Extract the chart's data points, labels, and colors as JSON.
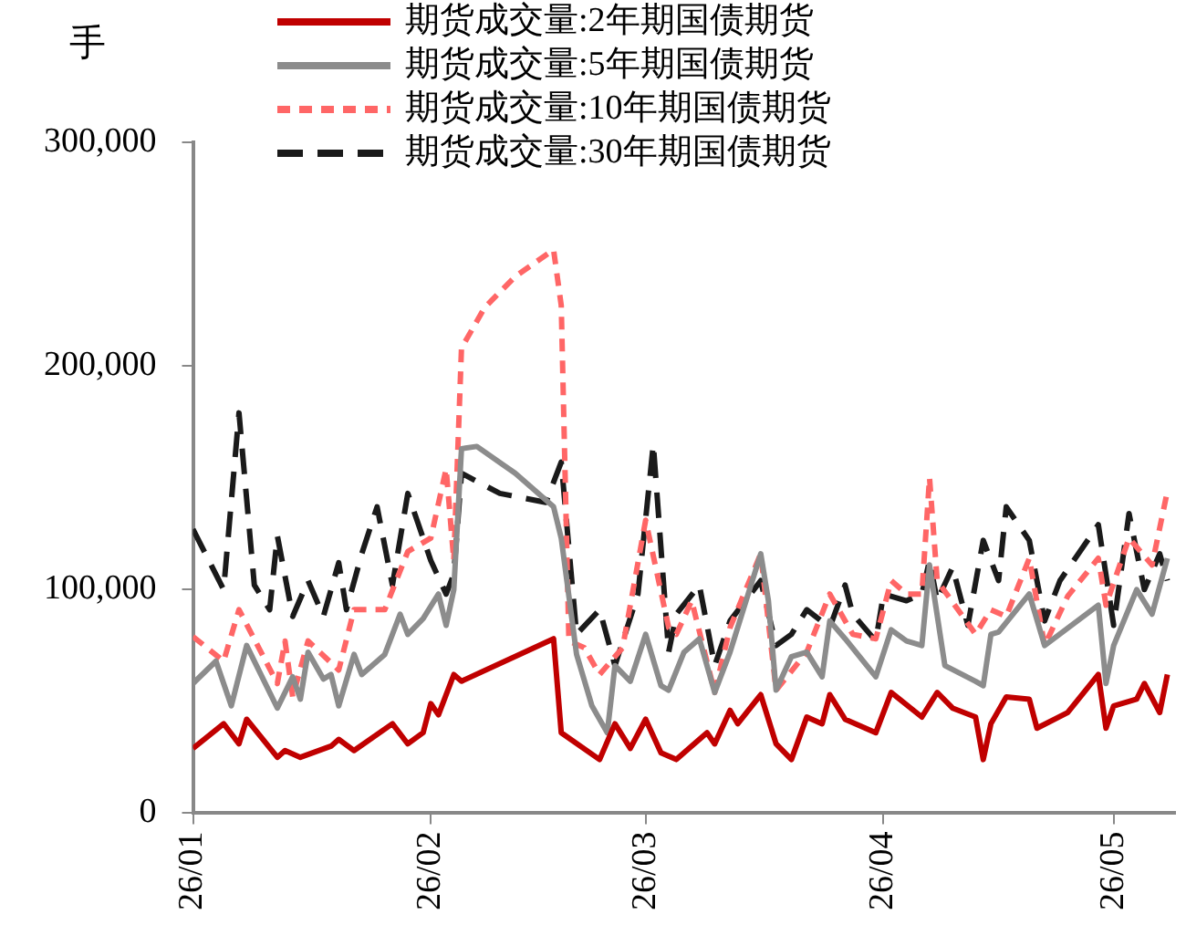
{
  "chart_data": {
    "type": "line",
    "ylabel": "手",
    "legend": "top",
    "grid": false,
    "marker": "none",
    "xlim": [
      "--01-01",
      "--05-09"
    ],
    "xticks": [
      {
        "value": "--01-01",
        "label": "26/01"
      },
      {
        "value": "--02-01",
        "label": "26/02"
      },
      {
        "value": "--03-01",
        "label": "26/03"
      },
      {
        "value": "--04-01",
        "label": "26/04"
      },
      {
        "value": "--05-01",
        "label": "26/05"
      }
    ],
    "ylim": [
      0,
      300000
    ],
    "yticks": [
      0,
      {
        "value": 100000,
        "label": "100,000"
      },
      {
        "value": 200000,
        "label": "200,000"
      },
      {
        "value": 300000,
        "label": "300,000"
      }
    ],
    "series": [
      {
        "name": "期货成交量:2年期国债期货",
        "color": "#c00000",
        "line_style": "solid",
        "x": [
          "--01-01",
          "--01-05",
          "--01-07",
          "--01-08",
          "--01-12",
          "--01-13",
          "--01-15",
          "--01-19",
          "--01-20",
          "--01-22",
          "--01-27",
          "--01-29",
          "--01-31",
          "--02-01",
          "--02-02",
          "--02-04",
          "--02-05",
          "--02-17",
          "--02-18",
          "--02-23",
          "--02-25",
          "--02-27",
          "--03-01",
          "--03-03",
          "--03-05",
          "--03-09",
          "--03-10",
          "--03-12",
          "--03-13",
          "--03-16",
          "--03-18",
          "--03-20",
          "--03-22",
          "--03-24",
          "--03-25",
          "--03-27",
          "--03-31",
          "--04-02",
          "--04-06",
          "--04-08",
          "--04-10",
          "--04-13",
          "--04-14",
          "--04-15",
          "--04-17",
          "--04-20",
          "--04-21",
          "--04-25",
          "--04-29",
          "--04-30",
          "--05-01",
          "--05-04",
          "--05-05",
          "--05-07",
          "--05-08"
        ],
        "values": [
          29000,
          40000,
          31000,
          42000,
          25000,
          28000,
          25000,
          30000,
          33000,
          28000,
          40000,
          31000,
          36000,
          49000,
          44000,
          62000,
          59000,
          78000,
          36000,
          24000,
          40000,
          29000,
          42000,
          27000,
          24000,
          36000,
          31000,
          46000,
          40000,
          53000,
          31000,
          24000,
          43000,
          40000,
          53000,
          42000,
          36000,
          54000,
          43000,
          54000,
          47000,
          43000,
          24000,
          40000,
          52000,
          51000,
          38000,
          45000,
          62000,
          38000,
          48000,
          51000,
          58000,
          45000,
          62000
        ]
      },
      {
        "name": "期货成交量:5年期国债期货",
        "color": "#8c8c8c",
        "line_style": "solid",
        "x": [
          "--01-01",
          "--01-04",
          "--01-06",
          "--01-08",
          "--01-12",
          "--01-14",
          "--01-15",
          "--01-16",
          "--01-18",
          "--01-19",
          "--01-20",
          "--01-22",
          "--01-23",
          "--01-26",
          "--01-28",
          "--01-29",
          "--01-31",
          "--02-02",
          "--02-03",
          "--02-04",
          "--02-05",
          "--02-07",
          "--02-12",
          "--02-17",
          "--02-18",
          "--02-20",
          "--02-22",
          "--02-24",
          "--02-25",
          "--02-27",
          "--03-01",
          "--03-03",
          "--03-04",
          "--03-06",
          "--03-08",
          "--03-10",
          "--03-12",
          "--03-16",
          "--03-17",
          "--03-18",
          "--03-20",
          "--03-22",
          "--03-24",
          "--03-25",
          "--03-27",
          "--03-31",
          "--04-02",
          "--04-04",
          "--04-06",
          "--04-07",
          "--04-09",
          "--04-13",
          "--04-14",
          "--04-15",
          "--04-16",
          "--04-20",
          "--04-22",
          "--04-29",
          "--04-30",
          "--05-01",
          "--05-04",
          "--05-06",
          "--05-08"
        ],
        "values": [
          58000,
          68000,
          48000,
          75000,
          47000,
          61000,
          51000,
          72000,
          60000,
          62000,
          48000,
          71000,
          62000,
          71000,
          89000,
          80000,
          87000,
          98000,
          84000,
          100000,
          163000,
          164000,
          152000,
          137000,
          123000,
          71000,
          48000,
          36000,
          66000,
          59000,
          80000,
          57000,
          55000,
          72000,
          78000,
          54000,
          72000,
          116000,
          95000,
          55000,
          70000,
          72000,
          61000,
          86000,
          78000,
          61000,
          82000,
          77000,
          75000,
          111000,
          66000,
          59000,
          57000,
          80000,
          81000,
          98000,
          75000,
          93000,
          58000,
          75000,
          100000,
          89000,
          114000
        ]
      },
      {
        "name": "期货成交量:10年期国债期货",
        "color": "#ff6666",
        "line_style": "dotted",
        "x": [
          "--01-01",
          "--01-05",
          "--01-07",
          "--01-12",
          "--01-13",
          "--01-14",
          "--01-16",
          "--01-20",
          "--01-22",
          "--01-26",
          "--01-29",
          "--02-01",
          "--02-03",
          "--02-04",
          "--02-05",
          "--02-08",
          "--02-12",
          "--02-17",
          "--02-18",
          "--02-19",
          "--02-21",
          "--02-23",
          "--02-26",
          "--03-01",
          "--03-04",
          "--03-05",
          "--03-07",
          "--03-10",
          "--03-12",
          "--03-16",
          "--03-18",
          "--03-22",
          "--03-25",
          "--03-28",
          "--03-31",
          "--04-02",
          "--04-04",
          "--04-06",
          "--04-07",
          "--04-08",
          "--04-13",
          "--04-15",
          "--04-17",
          "--04-20",
          "--04-22",
          "--04-25",
          "--04-29",
          "--04-30",
          "--05-03",
          "--05-06",
          "--05-08"
        ],
        "values": [
          79000,
          68000,
          91000,
          58000,
          77000,
          52000,
          77000,
          64000,
          91000,
          91000,
          117000,
          123000,
          154000,
          113000,
          208000,
          226000,
          240000,
          252000,
          227000,
          77000,
          74000,
          62000,
          74000,
          131000,
          83000,
          80000,
          95000,
          54000,
          83000,
          116000,
          55000,
          72000,
          98000,
          80000,
          78000,
          104000,
          98000,
          98000,
          150000,
          104000,
          80000,
          91000,
          88000,
          114000,
          75000,
          97000,
          114000,
          93000,
          123000,
          111000,
          144000
        ]
      },
      {
        "name": "期货成交量:30年期国债期货",
        "color": "#1a1a1a",
        "line_style": "dashed",
        "x": [
          "--01-01",
          "--01-05",
          "--01-07",
          "--01-09",
          "--01-11",
          "--01-12",
          "--01-14",
          "--01-16",
          "--01-18",
          "--01-20",
          "--01-21",
          "--01-23",
          "--01-25",
          "--01-27",
          "--01-29",
          "--02-01",
          "--02-03",
          "--02-04",
          "--02-05",
          "--02-10",
          "--02-16",
          "--02-18",
          "--02-20",
          "--02-23",
          "--02-25",
          "--02-28",
          "--03-02",
          "--03-04",
          "--03-05",
          "--03-08",
          "--03-10",
          "--03-12",
          "--03-16",
          "--03-18",
          "--03-20",
          "--03-22",
          "--03-25",
          "--03-27",
          "--03-28",
          "--03-31",
          "--04-01",
          "--04-04",
          "--04-06",
          "--04-07",
          "--04-08",
          "--04-10",
          "--04-12",
          "--04-14",
          "--04-16",
          "--04-17",
          "--04-20",
          "--04-22",
          "--04-24",
          "--04-29",
          "--05-01",
          "--05-03",
          "--05-05",
          "--05-07",
          "--05-08"
        ],
        "values": [
          127000,
          100000,
          179000,
          102000,
          91000,
          124000,
          88000,
          104000,
          88000,
          112000,
          91000,
          116000,
          137000,
          102000,
          143000,
          113000,
          98000,
          107000,
          152000,
          143000,
          139000,
          157000,
          80000,
          91000,
          66000,
          98000,
          165000,
          72000,
          89000,
          102000,
          66000,
          86000,
          104000,
          75000,
          80000,
          91000,
          83000,
          102000,
          89000,
          77000,
          98000,
          95000,
          98000,
          113000,
          95000,
          110000,
          84000,
          122000,
          104000,
          137000,
          122000,
          86000,
          104000,
          129000,
          84000,
          134000,
          100000,
          116000,
          104000
        ]
      }
    ]
  }
}
